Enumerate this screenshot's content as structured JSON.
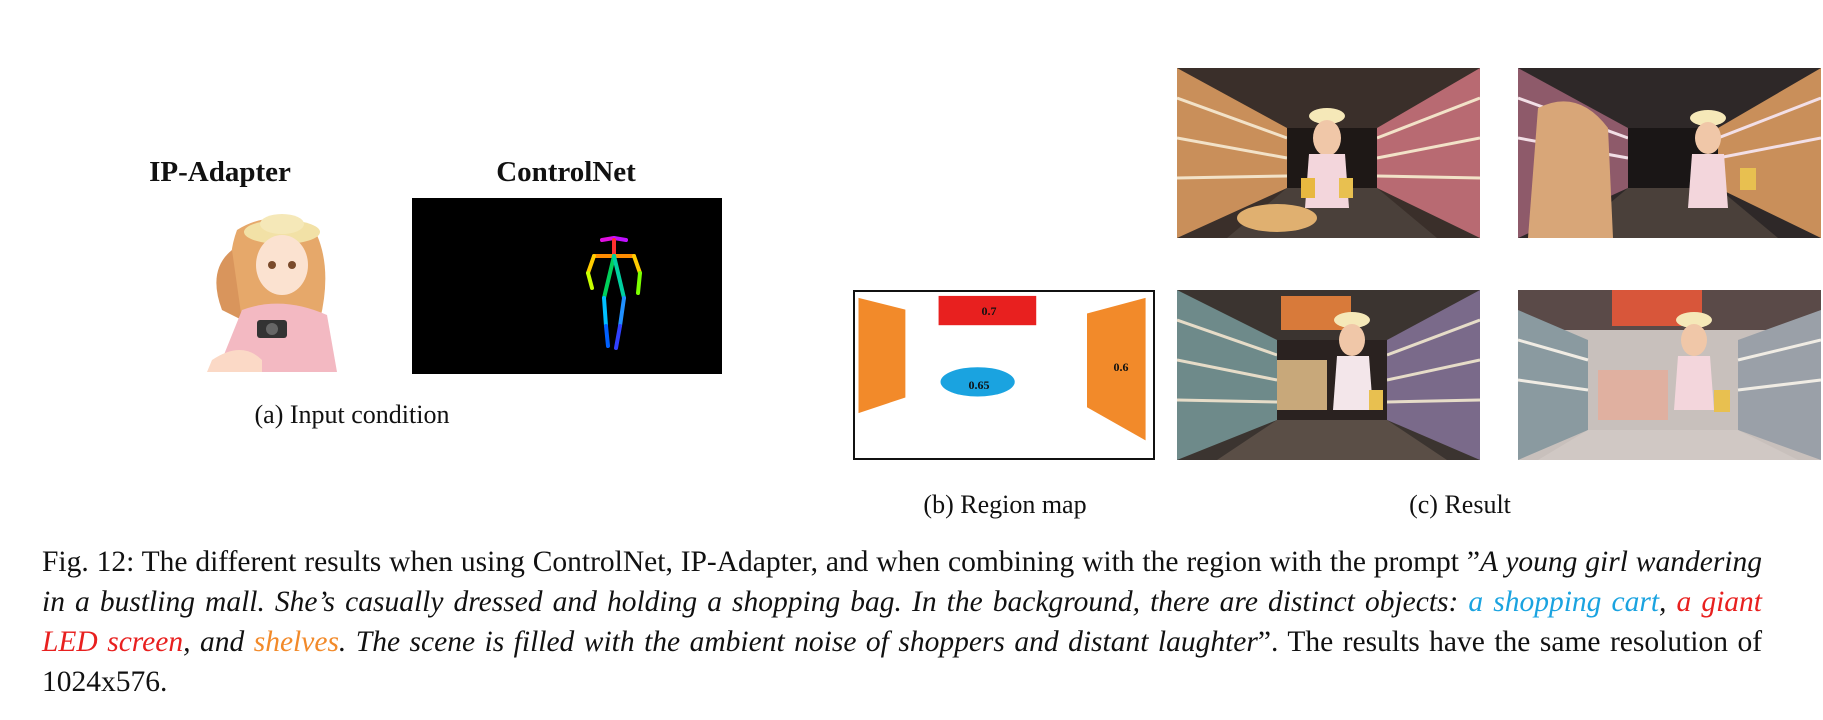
{
  "panel_a": {
    "ip_adapter_title": "IP-Adapter",
    "controlnet_title": "ControlNet",
    "caption": "(a) Input condition"
  },
  "panel_b": {
    "caption": "(b) Region map",
    "regions": {
      "led_screen": {
        "weight": "0.7",
        "color": "#e8201f"
      },
      "shopping_cart": {
        "weight": "0.65",
        "color": "#1aa3e0"
      },
      "shelves": {
        "weight": "0.6",
        "color": "#f28a2a"
      }
    }
  },
  "panel_c": {
    "caption": "(c) Result"
  },
  "caption": {
    "prefix": "Fig. 12: The different results when using ControlNet, IP-Adapter, and when combining with the region with the prompt ”",
    "prompt_part1": "A young girl wandering in a bustling mall. She’s casually dressed and holding a shopping bag. In the background, there are distinct objects: ",
    "cart": "a shopping cart",
    "sep1": ", ",
    "led": "a giant LED screen",
    "sep2": ", and ",
    "shelves": "shelves",
    "prompt_part2": ". The scene is filled with the ambient noise of shoppers and distant laughter",
    "suffix": "”. The results have the same resolution of 1024x576."
  }
}
